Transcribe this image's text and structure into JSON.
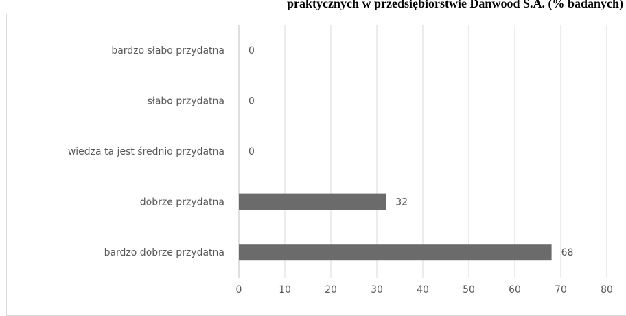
{
  "chart_data": {
    "type": "bar",
    "orientation": "horizontal",
    "title": "praktycznych w przedsiębiorstwie Danwood S.A. (% badanych)",
    "categories": [
      "bardzo słabo przydatna",
      "słabo przydatna",
      "wiedza ta jest średnio przydatna",
      "dobrze przydatna",
      "bardzo dobrze przydatna"
    ],
    "values": [
      0,
      0,
      0,
      32,
      68
    ],
    "data_labels": [
      "0",
      "0",
      "0",
      "32",
      "68"
    ],
    "xticks": [
      "0",
      "10",
      "20",
      "30",
      "40",
      "50",
      "60",
      "70",
      "80"
    ],
    "xlim": [
      0,
      80
    ],
    "grid": "vertical",
    "legend": "none",
    "colors": {
      "bar": "#6b6b6b",
      "grid": "#d9d9d9",
      "text": "#595959",
      "title": "#000000"
    }
  }
}
